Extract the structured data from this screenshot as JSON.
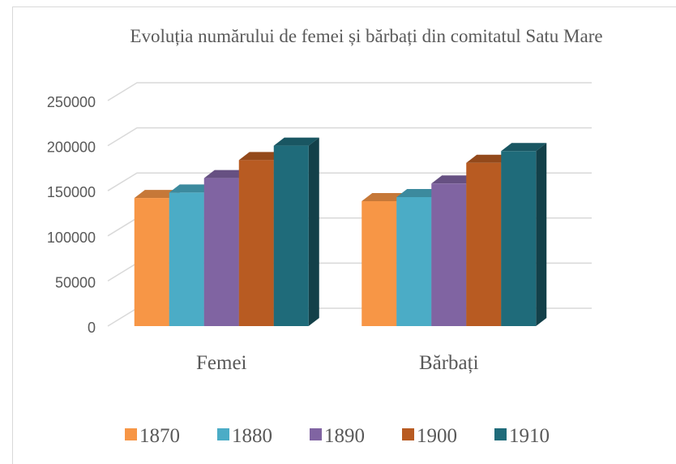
{
  "chart_data": {
    "type": "bar3d",
    "title": "Evoluția numărului de femei și bărbați din comitatul Satu Mare",
    "categories": [
      "Femei",
      "Bărbați"
    ],
    "series": [
      {
        "name": "1870",
        "color": "#f79646",
        "values": [
          142000,
          138500
        ]
      },
      {
        "name": "1880",
        "color": "#4bacc6",
        "values": [
          148000,
          143000
        ]
      },
      {
        "name": "1890",
        "color": "#8064a2",
        "values": [
          164000,
          158000
        ]
      },
      {
        "name": "1900",
        "color": "#b85b22",
        "values": [
          184000,
          181000
        ]
      },
      {
        "name": "1910",
        "color": "#1f6b7a",
        "values": [
          200000,
          194000
        ]
      }
    ],
    "ylim": [
      0,
      250000
    ],
    "yticks": [
      0,
      50000,
      100000,
      150000,
      200000,
      250000
    ],
    "grid": true,
    "legend": "bottom"
  }
}
